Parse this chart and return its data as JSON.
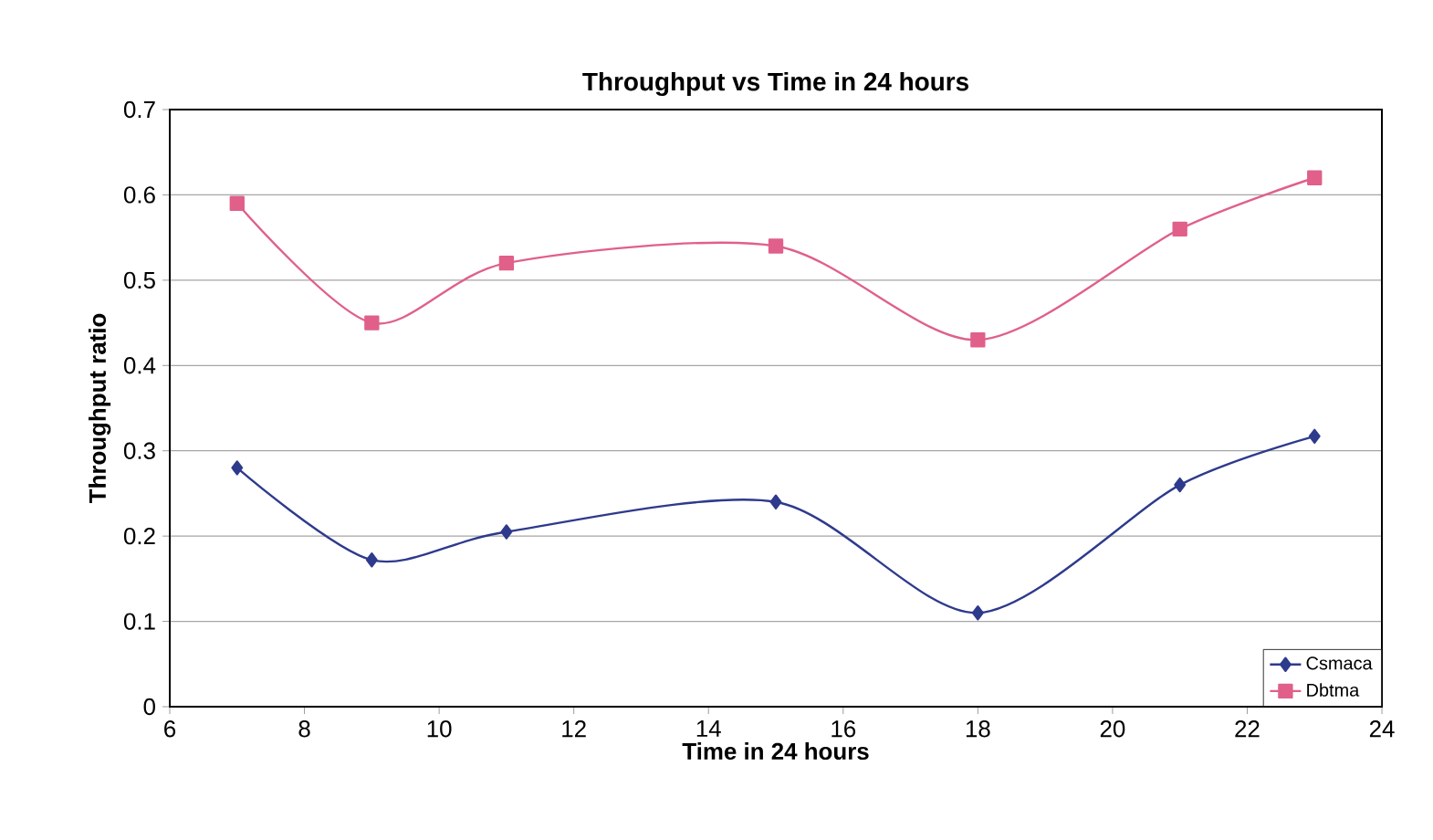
{
  "chart_data": {
    "type": "line",
    "title": "Throughput vs Time in 24 hours",
    "xlabel": "Time in 24 hours",
    "ylabel": "Throughput ratio",
    "x": [
      7,
      9,
      11,
      15,
      18,
      21,
      23
    ],
    "series": [
      {
        "name": "Csmaca",
        "color": "#2e3a8c",
        "marker": "diamond",
        "values": [
          0.28,
          0.172,
          0.205,
          0.24,
          0.11,
          0.26,
          0.317
        ]
      },
      {
        "name": "Dbtma",
        "color": "#e0608a",
        "marker": "square",
        "values": [
          0.59,
          0.45,
          0.52,
          0.54,
          0.43,
          0.56,
          0.62
        ]
      }
    ],
    "xlim": [
      6,
      24
    ],
    "xticks": [
      6,
      8,
      10,
      12,
      14,
      16,
      18,
      20,
      22,
      24
    ],
    "ylim": [
      0,
      0.7
    ],
    "yticks": [
      0,
      0.1,
      0.2,
      0.3,
      0.4,
      0.5,
      0.6,
      0.7
    ],
    "grid": "y",
    "legend": "bottom right",
    "line_style": "solid"
  }
}
